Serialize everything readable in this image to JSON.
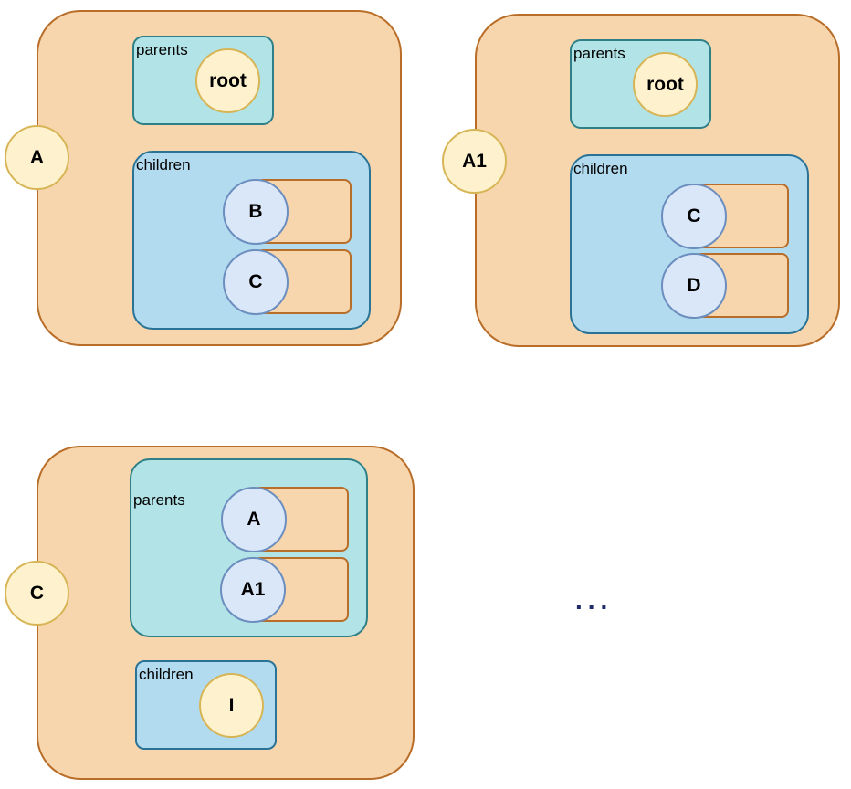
{
  "labels": {
    "parents": "parents",
    "children": "children"
  },
  "entity_a": {
    "name": "A",
    "parents": [
      "root"
    ],
    "children": [
      "B",
      "C"
    ]
  },
  "entity_a1": {
    "name": "A1",
    "parents": [
      "root"
    ],
    "children": [
      "C",
      "D"
    ]
  },
  "entity_c": {
    "name": "C",
    "parents": [
      "A",
      "A1"
    ],
    "children": [
      "I"
    ]
  },
  "ellipsis": "...",
  "colors": {
    "outer_fill": "#f8d6ad",
    "outer_stroke": "#b86d28",
    "parents_fill": "#b2e3e6",
    "children_fill": "#b2dbef",
    "yellow_circle": "#fdf2cd",
    "blue_circle": "#dae7f9"
  }
}
